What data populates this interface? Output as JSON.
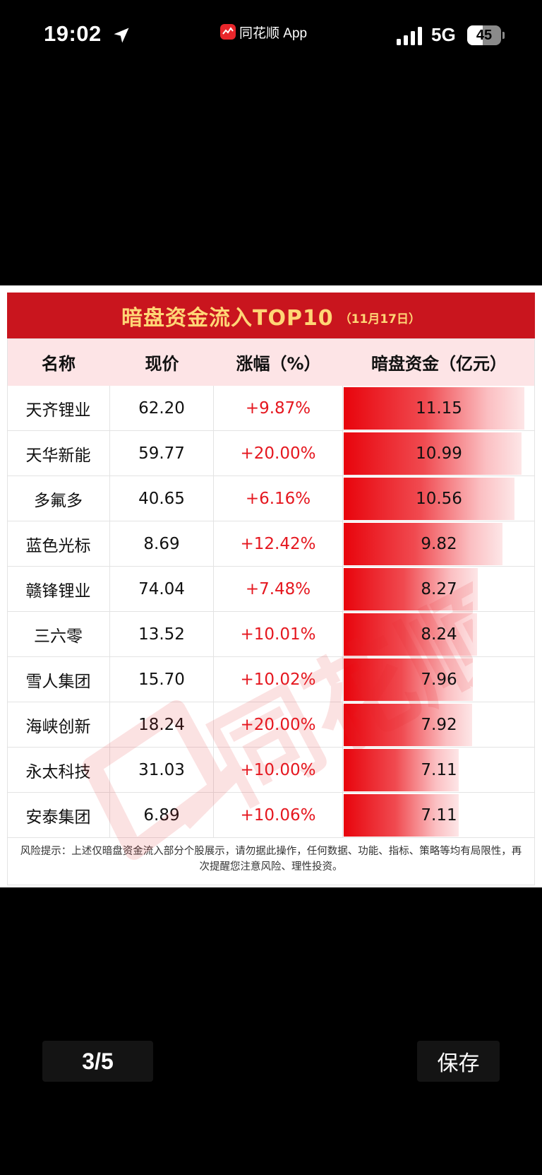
{
  "status_bar": {
    "time": "19:02",
    "app_name": "同花顺 App",
    "network": "5G",
    "battery": "45",
    "battery_level": 0.45
  },
  "card": {
    "title": "暗盘资金流入TOP10",
    "date": "（11月17日）",
    "columns": [
      "名称",
      "现价",
      "涨幅（%）",
      "暗盘资金（亿元）"
    ],
    "rows": [
      {
        "name": "天齐锂业",
        "price": "62.20",
        "change": "+9.87%",
        "inflow": "11.15",
        "inflow_value": 11.15
      },
      {
        "name": "天华新能",
        "price": "59.77",
        "change": "+20.00%",
        "inflow": "10.99",
        "inflow_value": 10.99
      },
      {
        "name": "多氟多",
        "price": "40.65",
        "change": "+6.16%",
        "inflow": "10.56",
        "inflow_value": 10.56
      },
      {
        "name": "蓝色光标",
        "price": "8.69",
        "change": "+12.42%",
        "inflow": "9.82",
        "inflow_value": 9.82
      },
      {
        "name": "赣锋锂业",
        "price": "74.04",
        "change": "+7.48%",
        "inflow": "8.27",
        "inflow_value": 8.27
      },
      {
        "name": "三六零",
        "price": "13.52",
        "change": "+10.01%",
        "inflow": "8.24",
        "inflow_value": 8.24
      },
      {
        "name": "雪人集团",
        "price": "15.70",
        "change": "+10.02%",
        "inflow": "7.96",
        "inflow_value": 7.96
      },
      {
        "name": "海峡创新",
        "price": "18.24",
        "change": "+20.00%",
        "inflow": "7.92",
        "inflow_value": 7.92
      },
      {
        "name": "永太科技",
        "price": "31.03",
        "change": "+10.00%",
        "inflow": "7.11",
        "inflow_value": 7.11
      },
      {
        "name": "安泰集团",
        "price": "6.89",
        "change": "+10.06%",
        "inflow": "7.11",
        "inflow_value": 7.11
      }
    ],
    "bar_max_value": 11.15,
    "footer": "风险提示：上述仅暗盘资金流入部分个股展示，请勿据此操作，任何数据、功能、指标、策略等均有局限性，再次提醒您注意风险、理性投资。",
    "watermark": "同花顺"
  },
  "controls": {
    "page_indicator": "3/5",
    "save_label": "保存"
  },
  "colors": {
    "title_bar": "#c9151e",
    "title_text": "#ffd676",
    "header_bg": "#fde4e6",
    "positive": "#e5171f",
    "bar": "#e8040c"
  }
}
